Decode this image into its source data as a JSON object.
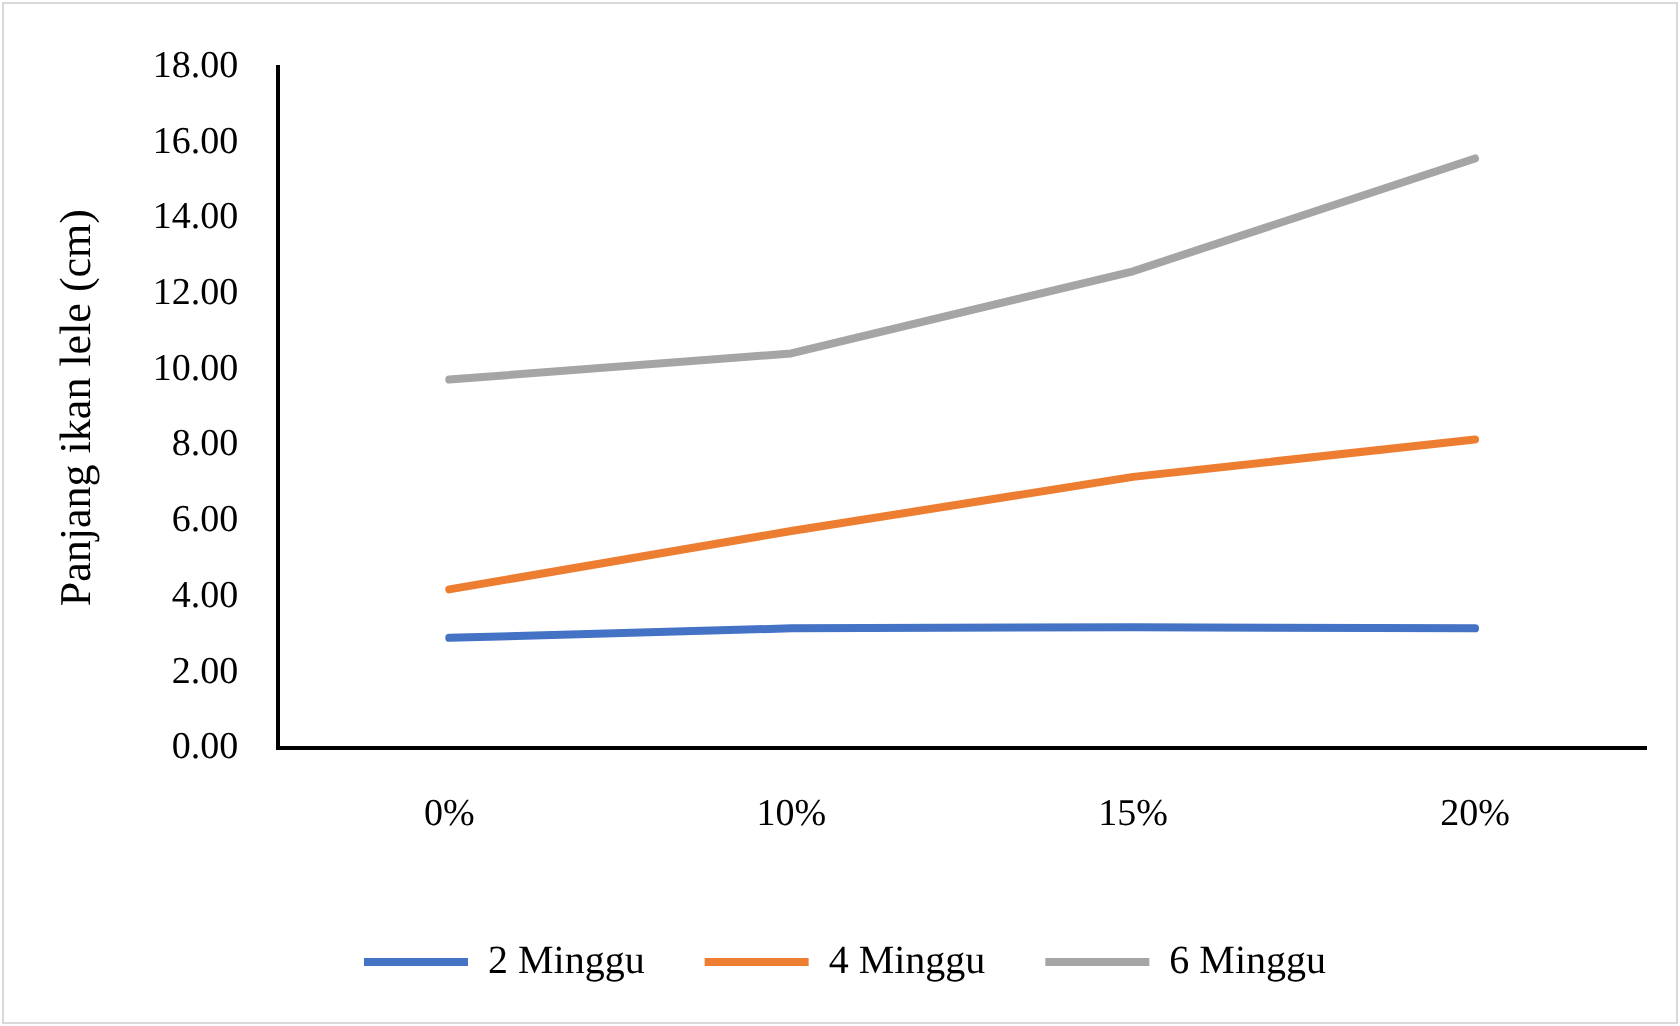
{
  "chart_data": {
    "type": "line",
    "ylabel": "Panjang ikan lele (cm)",
    "categories": [
      "0%",
      "10%",
      "15%",
      "20%"
    ],
    "series": [
      {
        "name": "2 Minggu",
        "color": "#4472c4",
        "values": [
          2.92,
          3.17,
          3.2,
          3.17
        ]
      },
      {
        "name": "4 Minggu",
        "color": "#ed7d31",
        "values": [
          4.2,
          5.74,
          7.17,
          8.16
        ]
      },
      {
        "name": "6 Minggu",
        "color": "#a5a5a5",
        "values": [
          9.74,
          10.43,
          12.6,
          15.58
        ]
      }
    ],
    "ylim": [
      0,
      18
    ],
    "yticks": [
      {
        "value": 0,
        "label": "0.00"
      },
      {
        "value": 2,
        "label": "2.00"
      },
      {
        "value": 4,
        "label": "4.00"
      },
      {
        "value": 6,
        "label": "6.00"
      },
      {
        "value": 8,
        "label": "8.00"
      },
      {
        "value": 10,
        "label": "10.00"
      },
      {
        "value": 12,
        "label": "12.00"
      },
      {
        "value": 14,
        "label": "14.00"
      },
      {
        "value": 16,
        "label": "16.00"
      },
      {
        "value": 18,
        "label": "18.00"
      }
    ],
    "grid": false,
    "legend": "bottom",
    "marker": "none",
    "line_style": "solid"
  }
}
